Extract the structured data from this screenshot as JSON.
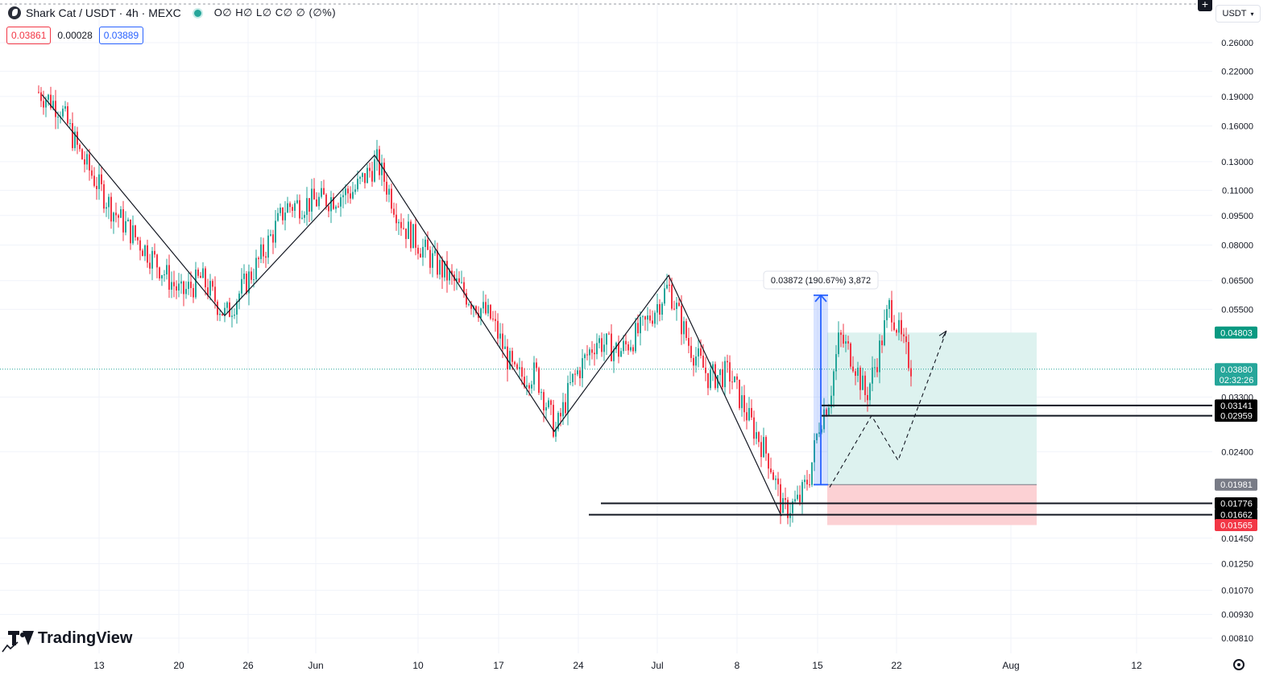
{
  "header": {
    "symbol": "Shark Cat / USDT · 4h · MEXC",
    "ohlc": "O∅ H∅ L∅ C∅ ∅ (∅%)",
    "sell_price": "0.03861",
    "spread": "0.00028",
    "buy_price": "0.03889",
    "currency": "USDT"
  },
  "branding": {
    "name": "TradingView"
  },
  "icons": [
    "plus-icon",
    "chevron-down-icon",
    "gear-icon",
    "tradingview-logo-icon"
  ],
  "colors": {
    "up": "#26a69a",
    "down": "#f23645",
    "measure": "#2962ff",
    "profit_zone": "#ddf2ef",
    "loss_zone": "#fcd1d4"
  },
  "chart_data": {
    "type": "candlestick",
    "timeframe": "4h",
    "x_axis": {
      "ticks": [
        "13",
        "20",
        "26",
        "Jun",
        "10",
        "17",
        "24",
        "Jul",
        "8",
        "15",
        "22",
        "Aug",
        "12"
      ]
    },
    "y_axis": {
      "scale": "log",
      "ylim": [
        0.0078,
        0.29
      ],
      "ticks": [
        "0.26000",
        "0.22000",
        "0.19000",
        "0.16000",
        "0.13000",
        "0.11000",
        "0.09500",
        "0.08000",
        "0.06500",
        "0.05500",
        "0.03300",
        "0.02400",
        "0.01450",
        "0.01250",
        "0.01070",
        "0.00930",
        "0.00810"
      ]
    },
    "grid": true,
    "series": [
      {
        "name": "Shark Cat / USDT",
        "closes_by_tick": [
          {
            "x": "13",
            "value": 0.185
          },
          {
            "x": "20",
            "value": 0.072
          },
          {
            "x": "26",
            "value": 0.06
          },
          {
            "x": "Jun",
            "value": 0.095
          },
          {
            "x": "10",
            "value": 0.085
          },
          {
            "x": "17",
            "value": 0.038
          },
          {
            "x": "24",
            "value": 0.04
          },
          {
            "x": "Jul",
            "value": 0.06
          },
          {
            "x": "8",
            "value": 0.032
          },
          {
            "x": "15",
            "value": 0.02
          },
          {
            "x": "22",
            "value": 0.042
          }
        ]
      }
    ],
    "price_labels": [
      {
        "value": "0.04803",
        "kind": "target"
      },
      {
        "value": "0.03880",
        "kind": "current",
        "countdown": "02:32:26"
      },
      {
        "value": "0.03141",
        "kind": "level"
      },
      {
        "value": "0.02959",
        "kind": "level"
      },
      {
        "value": "0.01981",
        "kind": "entry"
      },
      {
        "value": "0.01776",
        "kind": "level"
      },
      {
        "value": "0.01662",
        "kind": "level"
      },
      {
        "value": "0.01565",
        "kind": "stop"
      }
    ],
    "annotations": {
      "measure_label": "0.03872 (190.67%) 3,872"
    }
  }
}
